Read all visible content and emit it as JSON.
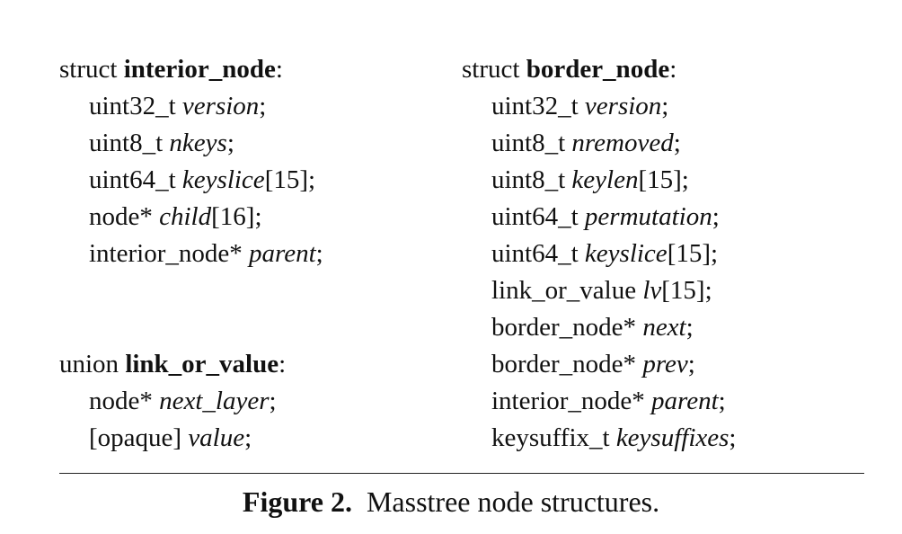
{
  "figure": {
    "label": "Figure 2.",
    "caption": "Masstree node structures."
  },
  "interior_node": {
    "keyword": "struct",
    "name": "interior_node",
    "fields": [
      {
        "type": "uint32_t",
        "name": "version",
        "suffix": ";"
      },
      {
        "type": "uint8_t",
        "name": "nkeys",
        "suffix": ";"
      },
      {
        "type": "uint64_t",
        "name": "keyslice",
        "suffix": "[15];"
      },
      {
        "type": "node*",
        "name": "child",
        "suffix": "[16];"
      },
      {
        "type": "interior_node*",
        "name": "parent",
        "suffix": ";"
      }
    ]
  },
  "link_or_value": {
    "keyword": "union",
    "name": "link_or_value",
    "fields": [
      {
        "type": "node*",
        "name": "next_layer",
        "suffix": ";"
      },
      {
        "type": "[opaque]",
        "name": "value",
        "suffix": ";"
      }
    ]
  },
  "border_node": {
    "keyword": "struct",
    "name": "border_node",
    "fields": [
      {
        "type": "uint32_t",
        "name": "version",
        "suffix": ";"
      },
      {
        "type": "uint8_t",
        "name": "nremoved",
        "suffix": ";"
      },
      {
        "type": "uint8_t",
        "name": "keylen",
        "suffix": "[15];"
      },
      {
        "type": "uint64_t",
        "name": "permutation",
        "suffix": ";"
      },
      {
        "type": "uint64_t",
        "name": "keyslice",
        "suffix": "[15];"
      },
      {
        "type": "link_or_value",
        "name": "lv",
        "suffix": "[15];"
      },
      {
        "type": "border_node*",
        "name": "next",
        "suffix": ";"
      },
      {
        "type": "border_node*",
        "name": "prev",
        "suffix": ";"
      },
      {
        "type": "interior_node*",
        "name": "parent",
        "suffix": ";"
      },
      {
        "type": "keysuffix_t",
        "name": "keysuffixes",
        "suffix": ";"
      }
    ]
  }
}
